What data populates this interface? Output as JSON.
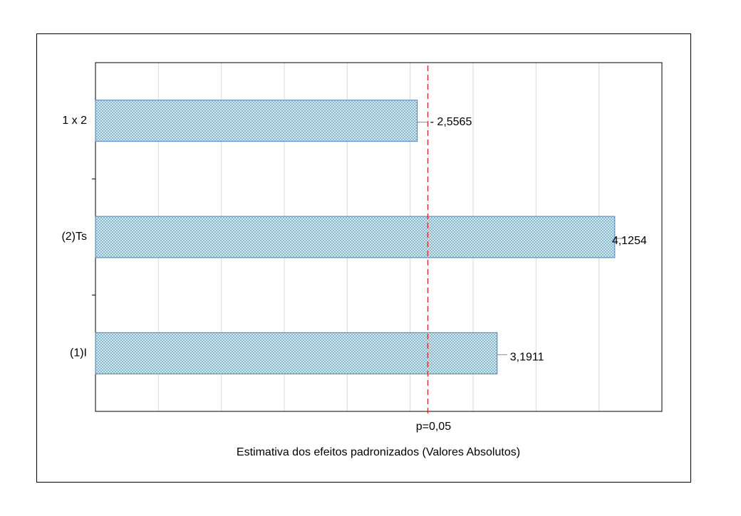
{
  "chart_data": {
    "type": "hbar",
    "categories": [
      "1 x 2",
      "(2)Ts",
      "(1)I"
    ],
    "values": [
      2.5565,
      4.1254,
      3.1911
    ],
    "value_labels": [
      "- 2,5565",
      "4,1254",
      "3,1911"
    ],
    "color": "#4f81bd",
    "xlabel": "Estimativa dos efeitos padronizados (Valores Absolutos)",
    "xlim": [
      0,
      4.5
    ],
    "xticks": [
      0,
      0.5,
      1,
      1.5,
      2,
      2.5,
      3,
      3.5,
      4,
      4.5
    ],
    "grid": true,
    "reference_line": {
      "value": 2.64,
      "label": "p=0,05",
      "color": "#e0202a"
    }
  }
}
